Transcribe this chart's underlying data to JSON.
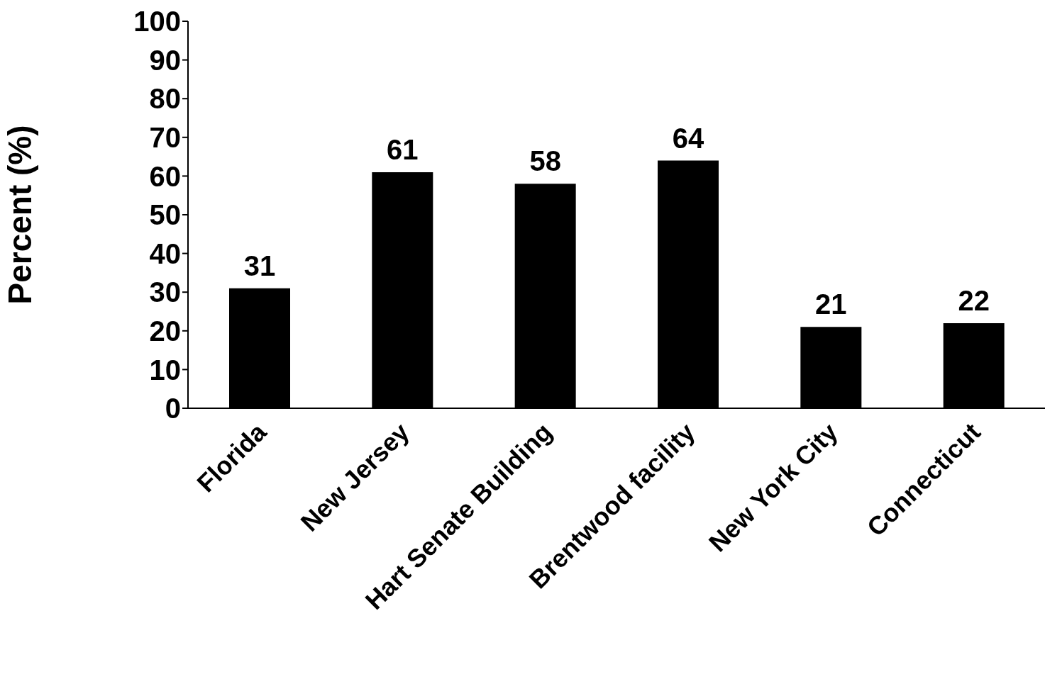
{
  "chart_data": {
    "type": "bar",
    "ylabel": "Percent (%)",
    "categories": [
      "Florida",
      "New Jersey",
      "Hart Senate Building",
      "Brentwood facility",
      "New York City",
      "Connecticut"
    ],
    "values": [
      31,
      61,
      58,
      64,
      21,
      22
    ],
    "color": "#000000",
    "ylim": [
      0,
      100
    ],
    "yticks": [
      0,
      10,
      20,
      30,
      40,
      50,
      60,
      70,
      80,
      90,
      100
    ],
    "grid": false,
    "legend": false,
    "data_labels": true
  }
}
